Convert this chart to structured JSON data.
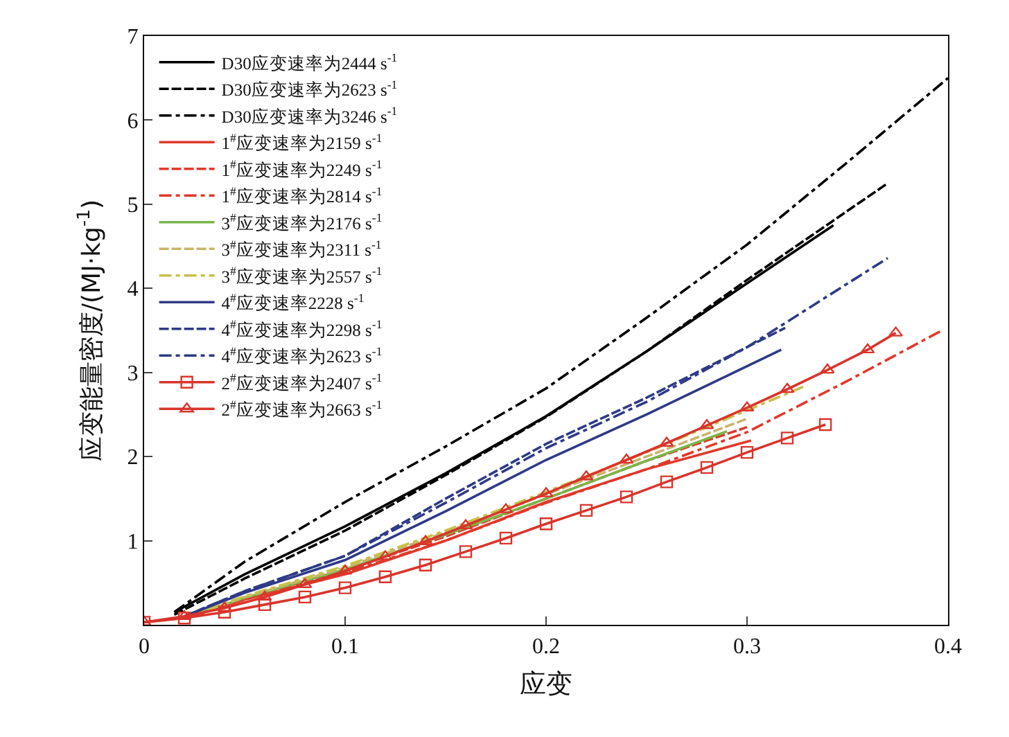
{
  "chart_data": {
    "type": "line",
    "xlabel": "应变",
    "ylabel": "应变能量密度/(MJ·kg$^{-1}$)",
    "xlim": [
      0,
      0.4
    ],
    "xticks": [
      0,
      0.1,
      0.2,
      0.3,
      0.4
    ],
    "ylim": [
      0,
      7
    ],
    "yticks": [
      1,
      2,
      3,
      4,
      5,
      6,
      7
    ],
    "grid": false,
    "legend": "top left",
    "series": [
      {
        "name": "D30应变速率为2444 s$^{-1}$",
        "color": "#000000",
        "line_style": "solid",
        "x": [
          0.015,
          0.05,
          0.1,
          0.15,
          0.2,
          0.25,
          0.3,
          0.343
        ],
        "values": [
          0.15,
          0.6,
          1.17,
          1.8,
          2.48,
          3.25,
          4.06,
          4.75
        ]
      },
      {
        "name": "D30应变速率为2623 s$^{-1}$",
        "color": "#000000",
        "line_style": "dashed",
        "x": [
          0.015,
          0.05,
          0.1,
          0.15,
          0.2,
          0.25,
          0.3,
          0.37
        ],
        "values": [
          0.12,
          0.55,
          1.12,
          1.78,
          2.47,
          3.25,
          4.1,
          5.25
        ]
      },
      {
        "name": "D30应变速率为3246 s$^{-1}$",
        "color": "#000000",
        "line_style": "dashdot",
        "x": [
          0.015,
          0.05,
          0.1,
          0.15,
          0.2,
          0.25,
          0.3,
          0.35,
          0.4
        ],
        "values": [
          0.15,
          0.75,
          1.46,
          2.12,
          2.81,
          3.65,
          4.52,
          5.5,
          6.5
        ]
      },
      {
        "name": "1$^{#}$应变速率为2159 s$^{-1}$",
        "color": "#e0392b",
        "line_style": "solid",
        "x": [
          0.02,
          0.05,
          0.1,
          0.15,
          0.2,
          0.25,
          0.302
        ],
        "values": [
          0.08,
          0.3,
          0.6,
          1.0,
          1.46,
          1.85,
          2.19
        ]
      },
      {
        "name": "1$^{#}$应变速率为2249 s$^{-1}$",
        "color": "#e0392b",
        "line_style": "dashed",
        "x": [
          0.02,
          0.05,
          0.1,
          0.15,
          0.2,
          0.25,
          0.3
        ],
        "values": [
          0.08,
          0.32,
          0.65,
          1.05,
          1.5,
          1.95,
          2.35
        ]
      },
      {
        "name": "1$^{#}$应变速率为2814 s$^{-1}$",
        "color": "#e0392b",
        "line_style": "dashdot",
        "x": [
          0.02,
          0.05,
          0.1,
          0.15,
          0.2,
          0.25,
          0.3,
          0.35,
          0.397
        ],
        "values": [
          0.07,
          0.3,
          0.62,
          1.0,
          1.45,
          1.85,
          2.29,
          2.9,
          3.5
        ]
      },
      {
        "name": "3$^{#}$应变速率为2176 s$^{-1}$",
        "color": "#7ab648",
        "line_style": "solid",
        "x": [
          0.02,
          0.05,
          0.1,
          0.15,
          0.2,
          0.25,
          0.29
        ],
        "values": [
          0.08,
          0.32,
          0.66,
          1.07,
          1.5,
          1.95,
          2.3
        ]
      },
      {
        "name": "3$^{#}$应变速率为2311 s$^{-1}$",
        "color": "#c8b46a",
        "line_style": "dashed",
        "x": [
          0.02,
          0.05,
          0.1,
          0.15,
          0.2,
          0.25,
          0.3
        ],
        "values": [
          0.08,
          0.33,
          0.68,
          1.1,
          1.55,
          2.0,
          2.45
        ]
      },
      {
        "name": "3$^{#}$应变速率为2557 s$^{-1}$",
        "color": "#c8c04a",
        "line_style": "dashdot",
        "x": [
          0.02,
          0.05,
          0.1,
          0.15,
          0.2,
          0.25,
          0.3,
          0.33
        ],
        "values": [
          0.08,
          0.34,
          0.7,
          1.12,
          1.58,
          2.05,
          2.55,
          2.85
        ]
      },
      {
        "name": "4$^{#}$应变速率2228 s$^{-1}$",
        "color": "#2e3a87",
        "line_style": "solid",
        "x": [
          0.02,
          0.05,
          0.1,
          0.15,
          0.2,
          0.25,
          0.317
        ],
        "values": [
          0.1,
          0.38,
          0.77,
          1.35,
          1.96,
          2.5,
          3.27
        ]
      },
      {
        "name": "4$^{#}$应变速率为2298 s$^{-1}$",
        "color": "#2e3a87",
        "line_style": "dashed",
        "x": [
          0.02,
          0.05,
          0.1,
          0.15,
          0.2,
          0.25,
          0.319
        ],
        "values": [
          0.1,
          0.4,
          0.82,
          1.5,
          2.15,
          2.7,
          3.53
        ]
      },
      {
        "name": "4$^{#}$应变速率为2623 s$^{-1}$",
        "color": "#2e3a87",
        "line_style": "dashdot",
        "x": [
          0.02,
          0.05,
          0.1,
          0.15,
          0.2,
          0.25,
          0.3,
          0.37
        ],
        "values": [
          0.1,
          0.4,
          0.82,
          1.45,
          2.1,
          2.65,
          3.3,
          4.36
        ]
      },
      {
        "name": "2$^{#}$应变速率为2407 s$^{-1}$",
        "color": "#d9342b",
        "line_style": "solid",
        "marker": "square",
        "x": [
          0,
          0.02,
          0.04,
          0.06,
          0.08,
          0.1,
          0.12,
          0.14,
          0.16,
          0.18,
          0.2,
          0.22,
          0.24,
          0.26,
          0.28,
          0.3,
          0.32,
          0.339
        ],
        "values": [
          0.03,
          0.08,
          0.15,
          0.24,
          0.33,
          0.44,
          0.57,
          0.71,
          0.87,
          1.03,
          1.2,
          1.36,
          1.52,
          1.7,
          1.87,
          2.05,
          2.22,
          2.38
        ]
      },
      {
        "name": "2$^{#}$应变速率为2663 s$^{-1}$",
        "color": "#d9342b",
        "line_style": "solid",
        "marker": "triangle",
        "x": [
          0,
          0.02,
          0.04,
          0.06,
          0.08,
          0.1,
          0.12,
          0.14,
          0.16,
          0.18,
          0.2,
          0.22,
          0.24,
          0.26,
          0.28,
          0.3,
          0.32,
          0.34,
          0.36,
          0.374
        ],
        "values": [
          0.03,
          0.1,
          0.2,
          0.33,
          0.48,
          0.64,
          0.81,
          0.99,
          1.18,
          1.37,
          1.56,
          1.76,
          1.96,
          2.16,
          2.37,
          2.58,
          2.8,
          3.03,
          3.27,
          3.47
        ]
      }
    ]
  }
}
